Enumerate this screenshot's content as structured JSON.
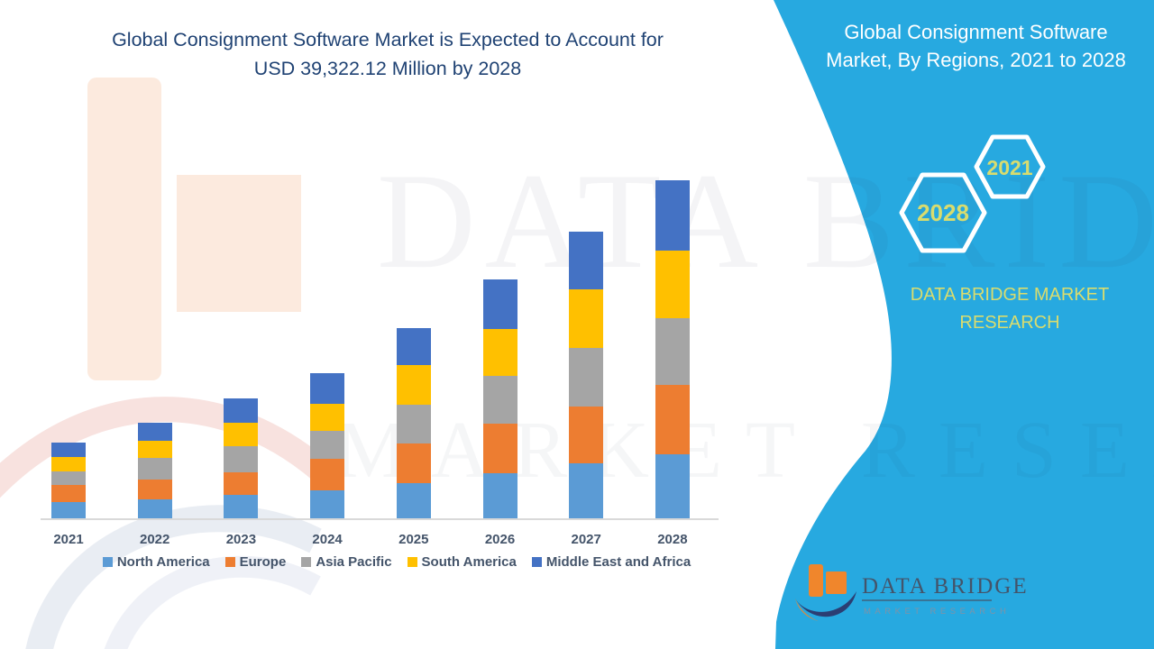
{
  "header": {
    "title_line1": "Global Consignment Software Market is Expected to Account for",
    "title_line2": "USD 39,322.12 Million by 2028"
  },
  "panel": {
    "title_line1": "Global Consignment Software",
    "title_line2": "Market, By Regions, 2021 to 2028",
    "hexagons": [
      {
        "label": "2028"
      },
      {
        "label": "2021"
      }
    ],
    "brand_line1": "DATA BRIDGE MARKET",
    "brand_line2": "RESEARCH"
  },
  "logo": {
    "name_line": "DATA BRIDGE",
    "sub_line": "MARKET RESEARCH"
  },
  "watermark": {
    "line1": "DATA BRIDGE",
    "line2": "MARKET RESEARCH"
  },
  "colors": {
    "panel_blue": "#27A9E0",
    "title_navy": "#1F4273",
    "accent_yellow_green": "#D9DC6E",
    "axis_text": "#44546A",
    "axis_line": "#D9D9D9",
    "logo_orange": "#F0862C",
    "logo_navy": "#2B3E73"
  },
  "chart_data": {
    "type": "bar",
    "stacked": true,
    "unit": "USD Million",
    "categories": [
      "2021",
      "2022",
      "2023",
      "2024",
      "2025",
      "2026",
      "2027",
      "2028"
    ],
    "series": [
      {
        "name": "North America",
        "color": "#5B9BD5",
        "values": [
          1850,
          2250,
          2750,
          3300,
          4050,
          5250,
          6350,
          7400
        ]
      },
      {
        "name": "Europe",
        "color": "#ED7D31",
        "values": [
          2000,
          2300,
          2650,
          3600,
          4700,
          5750,
          6700,
          8100
        ]
      },
      {
        "name": "Asia Pacific",
        "color": "#A5A5A5",
        "values": [
          1600,
          2450,
          2950,
          3250,
          4500,
          5600,
          6800,
          7800
        ]
      },
      {
        "name": "South America",
        "color": "#FFC000",
        "values": [
          1650,
          2050,
          2800,
          3200,
          4550,
          5400,
          6800,
          7800
        ]
      },
      {
        "name": "Middle East and Africa",
        "color": "#4472C4",
        "values": [
          1700,
          2100,
          2850,
          3500,
          4350,
          5750,
          6750,
          8222.12
        ]
      }
    ],
    "totals": [
      8800,
      11150,
      14000,
      16850,
      22150,
      27750,
      33400,
      39322.12
    ],
    "ylim": [
      0,
      40000
    ],
    "grid": false,
    "legend_position": "bottom",
    "note": "segment values estimated from bar pixel heights; 2028 total labeled in title"
  }
}
